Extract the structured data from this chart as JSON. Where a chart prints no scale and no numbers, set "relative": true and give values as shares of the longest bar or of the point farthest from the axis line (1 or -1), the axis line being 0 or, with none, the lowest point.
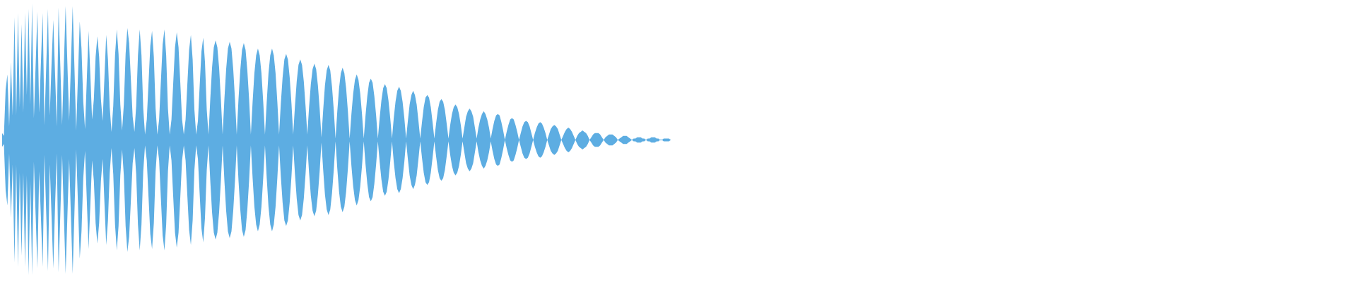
{
  "chart_data": {
    "type": "area",
    "relative": true,
    "categories": [
      null,
      null,
      null,
      null,
      null,
      null,
      null,
      null,
      null,
      null,
      null,
      null,
      null,
      null,
      null,
      null,
      null,
      null,
      null,
      null,
      null,
      null,
      null,
      null,
      null,
      null,
      null,
      null,
      null,
      null,
      null,
      null,
      null,
      null,
      null,
      null,
      null,
      null,
      null,
      null,
      null,
      null,
      null,
      null,
      null,
      null,
      null,
      null,
      null,
      null,
      null,
      null,
      null,
      null,
      null,
      null,
      null,
      null,
      null,
      null,
      null,
      null,
      null,
      null,
      null,
      null,
      null,
      null,
      null,
      null,
      null,
      null,
      null,
      null,
      null,
      null,
      null,
      null,
      null,
      null,
      null,
      null,
      null,
      null,
      null,
      null,
      null,
      null,
      null,
      null,
      null,
      null,
      null,
      null,
      null,
      null,
      null,
      null,
      null,
      null,
      null,
      null,
      null,
      null,
      null,
      null,
      null,
      null,
      null,
      null,
      null,
      null,
      null,
      null,
      null,
      null,
      null,
      null,
      null,
      null,
      null,
      null,
      null,
      null,
      null,
      null,
      null,
      null,
      null,
      null,
      null,
      null,
      null,
      null,
      null,
      null,
      null,
      null,
      null,
      null,
      null,
      null,
      null,
      null,
      null,
      null,
      null,
      null,
      null,
      null,
      null,
      null,
      null,
      null,
      null,
      null,
      null,
      null,
      null,
      null,
      null,
      null,
      null,
      null,
      null,
      null,
      null,
      null,
      null,
      null,
      null,
      null,
      null,
      null,
      null,
      null,
      null,
      null,
      null,
      null,
      null,
      null,
      null,
      null,
      null,
      null,
      null,
      null,
      null,
      null,
      null,
      null,
      null,
      null,
      null,
      null,
      null,
      null,
      null,
      null,
      null,
      null,
      null,
      null,
      null,
      null,
      null,
      null,
      null,
      null,
      null,
      null,
      null,
      null,
      null,
      null,
      null,
      null,
      null,
      null,
      null,
      null,
      null,
      null,
      null,
      null,
      null,
      null,
      null,
      null,
      null,
      null,
      null,
      null,
      null,
      null,
      null,
      null,
      null,
      null,
      null,
      null,
      null,
      null,
      null,
      null,
      null,
      null,
      null,
      null,
      null,
      null,
      null,
      null,
      null,
      null,
      null,
      null,
      null,
      null,
      null,
      null,
      null,
      null,
      null,
      null,
      null,
      null,
      null,
      null,
      null,
      null,
      null,
      null,
      null,
      null,
      null,
      null,
      null,
      null,
      null,
      null,
      null,
      null,
      null,
      null,
      null,
      null,
      null,
      null,
      null,
      null,
      null,
      null,
      null,
      null,
      null,
      null,
      null,
      null,
      null,
      null,
      null,
      null,
      null,
      null,
      null,
      null,
      null,
      null,
      null,
      null,
      null,
      null,
      null,
      null,
      null,
      null,
      null,
      null,
      null,
      null,
      null,
      null,
      null,
      null,
      null,
      null,
      null,
      null,
      null,
      null,
      null,
      null,
      null,
      null,
      null,
      null,
      null,
      null,
      null,
      null,
      null,
      null,
      null,
      null,
      null,
      null,
      null,
      null,
      null,
      null,
      null,
      null,
      null,
      null,
      null,
      null,
      null,
      null,
      null,
      null,
      null,
      null,
      null,
      null,
      null,
      null,
      null,
      null,
      null,
      null,
      null,
      null,
      null,
      null,
      null,
      null,
      null,
      null
    ],
    "series": [
      {
        "color": "#5dade2",
        "values": [
          0.05,
          0.03,
          0.37,
          0.48,
          0.1,
          0.57,
          0.18,
          0.9,
          0.18,
          0.93,
          0.24,
          0.85,
          0.2,
          0.93,
          0.33,
          0.96,
          0.26,
          1.0,
          0.16,
          0.55,
          0.94,
          0.2,
          0.57,
          0.93,
          0.11,
          0.54,
          0.96,
          0.18,
          0.55,
          0.88,
          0.49,
          0.1,
          0.97,
          0.54,
          0.11,
          0.55,
          0.98,
          0.56,
          0.14,
          0.56,
          0.98,
          0.53,
          0.07,
          0.47,
          0.87,
          0.67,
          0.28,
          0.08,
          0.44,
          0.8,
          0.48,
          0.15,
          0.3,
          0.61,
          0.76,
          0.61,
          0.3,
          0.14,
          0.46,
          0.77,
          0.59,
          0.24,
          0.06,
          0.25,
          0.62,
          0.81,
          0.63,
          0.26,
          0.07,
          0.26,
          0.63,
          0.82,
          0.71,
          0.44,
          0.17,
          0.06,
          0.25,
          0.62,
          0.81,
          0.62,
          0.23,
          0.04,
          0.15,
          0.42,
          0.69,
          0.8,
          0.61,
          0.23,
          0.04,
          0.15,
          0.43,
          0.7,
          0.81,
          0.62,
          0.23,
          0.04,
          0.15,
          0.42,
          0.68,
          0.79,
          0.68,
          0.42,
          0.15,
          0.04,
          0.15,
          0.41,
          0.66,
          0.77,
          0.59,
          0.22,
          0.04,
          0.14,
          0.4,
          0.65,
          0.75,
          0.57,
          0.22,
          0.04,
          0.3,
          0.53,
          0.68,
          0.73,
          0.68,
          0.53,
          0.3,
          0.04,
          0.3,
          0.52,
          0.67,
          0.72,
          0.67,
          0.52,
          0.3,
          0.04,
          0.3,
          0.51,
          0.66,
          0.71,
          0.66,
          0.51,
          0.3,
          0.04,
          0.28,
          0.49,
          0.62,
          0.67,
          0.62,
          0.49,
          0.28,
          0.04,
          0.28,
          0.49,
          0.62,
          0.67,
          0.62,
          0.49,
          0.28,
          0.04,
          0.27,
          0.46,
          0.59,
          0.63,
          0.59,
          0.46,
          0.27,
          0.04,
          0.25,
          0.43,
          0.55,
          0.59,
          0.55,
          0.43,
          0.25,
          0.04,
          0.24,
          0.41,
          0.52,
          0.56,
          0.52,
          0.4,
          0.23,
          0.02,
          0.22,
          0.4,
          0.51,
          0.55,
          0.51,
          0.39,
          0.22,
          0.01,
          0.21,
          0.38,
          0.49,
          0.53,
          0.49,
          0.38,
          0.21,
          0.01,
          0.19,
          0.34,
          0.44,
          0.48,
          0.44,
          0.34,
          0.19,
          0.01,
          0.18,
          0.32,
          0.42,
          0.45,
          0.42,
          0.32,
          0.18,
          0.01,
          0.16,
          0.29,
          0.38,
          0.41,
          0.38,
          0.29,
          0.16,
          0.01,
          0.16,
          0.28,
          0.36,
          0.39,
          0.36,
          0.28,
          0.16,
          0.01,
          0.14,
          0.26,
          0.33,
          0.36,
          0.33,
          0.26,
          0.14,
          0.01,
          0.13,
          0.24,
          0.31,
          0.33,
          0.31,
          0.24,
          0.13,
          0.01,
          0.12,
          0.22,
          0.28,
          0.3,
          0.28,
          0.22,
          0.12,
          0.01,
          0.11,
          0.19,
          0.24,
          0.26,
          0.24,
          0.19,
          0.11,
          0.01,
          0.09,
          0.17,
          0.21,
          0.23,
          0.21,
          0.17,
          0.09,
          0.01,
          0.09,
          0.15,
          0.19,
          0.21,
          0.19,
          0.15,
          0.09,
          0.01,
          0.08,
          0.14,
          0.18,
          0.19,
          0.18,
          0.13,
          0.07,
          0,
          0.06,
          0.11,
          0.15,
          0.16,
          0.15,
          0.11,
          0.06,
          0,
          0.05,
          0.1,
          0.13,
          0.14,
          0.13,
          0.1,
          0.05,
          0,
          0.05,
          0.09,
          0.12,
          0.13,
          0.12,
          0.09,
          0.05,
          0,
          0.04,
          0.08,
          0.1,
          0.11,
          0.1,
          0.08,
          0.04,
          0,
          0.03,
          0.06,
          0.08,
          0.09,
          0.08,
          0.06,
          0.03,
          0,
          0.03,
          0.05,
          0.06,
          0.07,
          0.06,
          0.05,
          0.03,
          0,
          0.02,
          0.04,
          0.05,
          0.05,
          0.05,
          0.04,
          0.02,
          0,
          0.02,
          0.03,
          0.04,
          0.04,
          0.04,
          0.03,
          0.02,
          0,
          0.01,
          0.02,
          0.03,
          0.03,
          0.03,
          0.02,
          0.01,
          0,
          0.01,
          0.01,
          0.02,
          0.02,
          0.02,
          0.01,
          0.01,
          0,
          0.01,
          0.01,
          0.02,
          0.02,
          0.02,
          0.01,
          0.01,
          0,
          0,
          0.01,
          0.01,
          0.01,
          0.01,
          0
        ]
      },
      {
        "color": "#5dade2",
        "values": [
          -0.05,
          -0.03,
          -0.37,
          -0.48,
          -0.1,
          -0.57,
          -0.18,
          -0.9,
          -0.18,
          -0.93,
          -0.24,
          -0.85,
          -0.24,
          -0.93,
          -0.26,
          -0.99,
          -0.3,
          -0.99,
          -0.16,
          -0.55,
          -0.94,
          -0.23,
          -0.57,
          -0.93,
          -0.11,
          -0.54,
          -0.96,
          -0.18,
          -0.55,
          -0.94,
          -0.49,
          -0.1,
          -0.97,
          -0.54,
          -0.11,
          -0.55,
          -0.98,
          -0.56,
          -0.14,
          -0.56,
          -0.98,
          -0.53,
          -0.07,
          -0.47,
          -0.87,
          -0.67,
          -0.28,
          -0.08,
          -0.44,
          -0.8,
          -0.48,
          -0.15,
          -0.3,
          -0.61,
          -0.76,
          -0.61,
          -0.3,
          -0.14,
          -0.46,
          -0.77,
          -0.59,
          -0.24,
          -0.06,
          -0.25,
          -0.62,
          -0.81,
          -0.63,
          -0.26,
          -0.07,
          -0.26,
          -0.63,
          -0.82,
          -0.71,
          -0.44,
          -0.17,
          -0.06,
          -0.25,
          -0.62,
          -0.81,
          -0.62,
          -0.23,
          -0.04,
          -0.15,
          -0.42,
          -0.69,
          -0.8,
          -0.61,
          -0.23,
          -0.04,
          -0.15,
          -0.43,
          -0.7,
          -0.81,
          -0.62,
          -0.23,
          -0.04,
          -0.15,
          -0.42,
          -0.68,
          -0.79,
          -0.68,
          -0.42,
          -0.15,
          -0.04,
          -0.15,
          -0.41,
          -0.66,
          -0.77,
          -0.59,
          -0.22,
          -0.04,
          -0.14,
          -0.4,
          -0.65,
          -0.75,
          -0.57,
          -0.22,
          -0.04,
          -0.3,
          -0.53,
          -0.68,
          -0.73,
          -0.68,
          -0.53,
          -0.3,
          -0.04,
          -0.3,
          -0.52,
          -0.67,
          -0.72,
          -0.67,
          -0.52,
          -0.3,
          -0.04,
          -0.3,
          -0.51,
          -0.66,
          -0.71,
          -0.66,
          -0.51,
          -0.3,
          -0.04,
          -0.28,
          -0.49,
          -0.62,
          -0.67,
          -0.62,
          -0.49,
          -0.28,
          -0.04,
          -0.28,
          -0.49,
          -0.62,
          -0.67,
          -0.62,
          -0.49,
          -0.28,
          -0.04,
          -0.27,
          -0.46,
          -0.59,
          -0.63,
          -0.59,
          -0.46,
          -0.27,
          -0.04,
          -0.25,
          -0.43,
          -0.55,
          -0.59,
          -0.55,
          -0.43,
          -0.25,
          -0.04,
          -0.24,
          -0.41,
          -0.52,
          -0.56,
          -0.52,
          -0.4,
          -0.23,
          -0.02,
          -0.22,
          -0.4,
          -0.51,
          -0.55,
          -0.51,
          -0.39,
          -0.22,
          -0.01,
          -0.21,
          -0.38,
          -0.49,
          -0.53,
          -0.49,
          -0.38,
          -0.21,
          -0.01,
          -0.19,
          -0.34,
          -0.44,
          -0.48,
          -0.44,
          -0.34,
          -0.19,
          -0.01,
          -0.18,
          -0.32,
          -0.42,
          -0.45,
          -0.42,
          -0.32,
          -0.18,
          -0.01,
          -0.16,
          -0.29,
          -0.38,
          -0.41,
          -0.38,
          -0.29,
          -0.16,
          -0.01,
          -0.16,
          -0.28,
          -0.36,
          -0.39,
          -0.36,
          -0.28,
          -0.16,
          -0.01,
          -0.14,
          -0.26,
          -0.33,
          -0.36,
          -0.33,
          -0.26,
          -0.14,
          -0.01,
          -0.13,
          -0.24,
          -0.31,
          -0.33,
          -0.31,
          -0.24,
          -0.13,
          -0.01,
          -0.12,
          -0.22,
          -0.28,
          -0.3,
          -0.28,
          -0.22,
          -0.12,
          -0.01,
          -0.11,
          -0.19,
          -0.24,
          -0.26,
          -0.24,
          -0.19,
          -0.11,
          -0.01,
          -0.09,
          -0.17,
          -0.21,
          -0.23,
          -0.21,
          -0.17,
          -0.09,
          -0.01,
          -0.09,
          -0.15,
          -0.19,
          -0.21,
          -0.19,
          -0.15,
          -0.09,
          -0.01,
          -0.08,
          -0.14,
          -0.18,
          -0.19,
          -0.18,
          -0.13,
          -0.07,
          0,
          -0.06,
          -0.11,
          -0.15,
          -0.16,
          -0.15,
          -0.11,
          -0.06,
          0,
          -0.05,
          -0.1,
          -0.13,
          -0.14,
          -0.13,
          -0.1,
          -0.05,
          0,
          -0.05,
          -0.09,
          -0.12,
          -0.13,
          -0.12,
          -0.09,
          -0.05,
          0,
          -0.04,
          -0.08,
          -0.1,
          -0.11,
          -0.1,
          -0.08,
          -0.04,
          0,
          -0.03,
          -0.06,
          -0.08,
          -0.09,
          -0.08,
          -0.06,
          -0.03,
          0,
          -0.03,
          -0.05,
          -0.06,
          -0.07,
          -0.06,
          -0.05,
          -0.03,
          0,
          -0.02,
          -0.04,
          -0.05,
          -0.05,
          -0.05,
          -0.04,
          -0.02,
          0,
          -0.02,
          -0.03,
          -0.04,
          -0.04,
          -0.04,
          -0.03,
          -0.02,
          0,
          -0.01,
          -0.02,
          -0.03,
          -0.03,
          -0.03,
          -0.02,
          -0.01,
          0,
          -0.01,
          -0.01,
          -0.02,
          -0.02,
          -0.02,
          -0.01,
          -0.01,
          0,
          -0.01,
          -0.01,
          -0.02,
          -0.02,
          -0.02,
          -0.01,
          -0.01,
          0,
          0,
          -0.01,
          -0.01,
          -0.01,
          -0.01,
          0
        ]
      }
    ],
    "ref_lines": [
      {
        "axis": "y",
        "value": 0,
        "color": "#5dade2"
      }
    ]
  }
}
